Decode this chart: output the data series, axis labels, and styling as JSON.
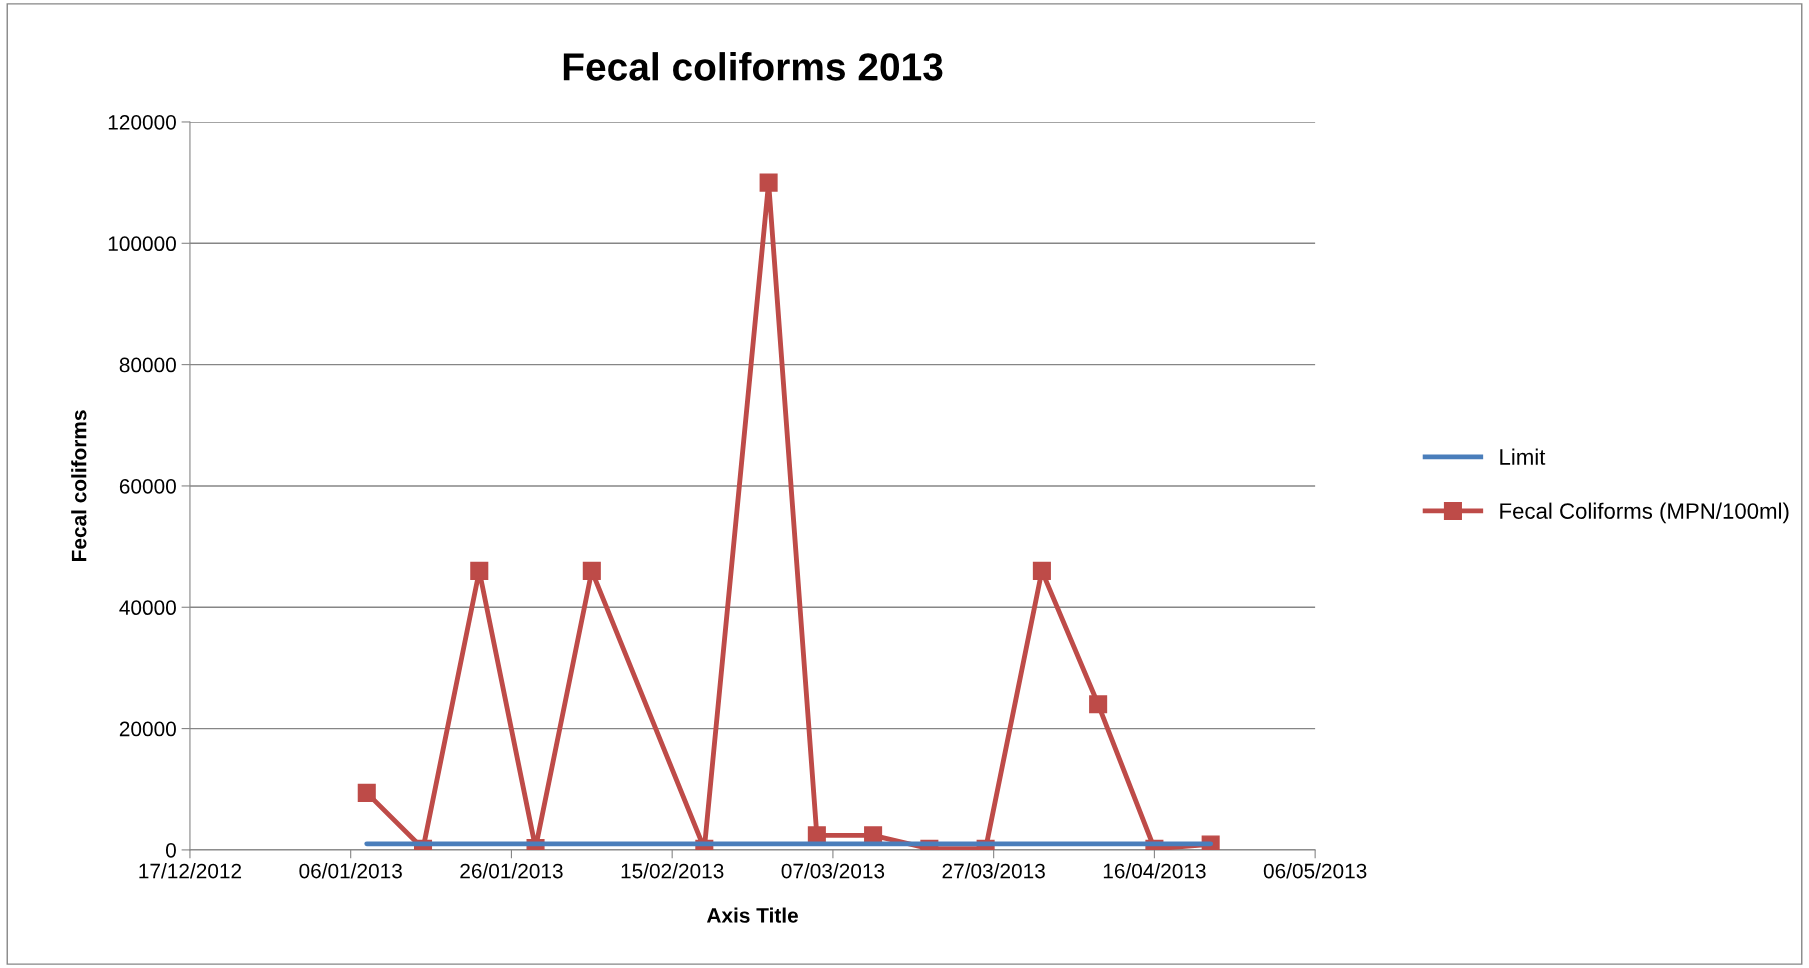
{
  "chart_data": {
    "type": "line",
    "title": "Fecal coliforms 2013",
    "xlabel": "Axis Title",
    "ylabel": "Fecal coliforms",
    "x": [
      "2013-01-08",
      "2013-01-15",
      "2013-01-22",
      "2013-01-29",
      "2013-02-05",
      "2013-02-19",
      "2013-02-27",
      "2013-03-05",
      "2013-03-12",
      "2013-03-19",
      "2013-03-26",
      "2013-04-02",
      "2013-04-09",
      "2013-04-16",
      "2013-04-23"
    ],
    "series": [
      {
        "name": "Limit",
        "color": "#4a7ebb",
        "marker": "none",
        "values": [
          1000,
          1000,
          1000,
          1000,
          1000,
          1000,
          1000,
          1000,
          1000,
          1000,
          1000,
          1000,
          1000,
          1000,
          1000
        ]
      },
      {
        "name": "Fecal Coliforms (MPN/100ml)",
        "color": "#be4b48",
        "marker": "square",
        "values": [
          9400,
          200,
          46000,
          300,
          46000,
          200,
          110000,
          2400,
          2400,
          200,
          200,
          46000,
          24000,
          200,
          900
        ]
      }
    ],
    "xlim": [
      "2012-12-17",
      "2013-05-06"
    ],
    "xticks": [
      {
        "value": "2012-12-17",
        "label": "17/12/2012"
      },
      {
        "value": "2013-01-06",
        "label": "06/01/2013"
      },
      {
        "value": "2013-01-26",
        "label": "26/01/2013"
      },
      {
        "value": "2013-02-15",
        "label": "15/02/2013"
      },
      {
        "value": "2013-03-07",
        "label": "07/03/2013"
      },
      {
        "value": "2013-03-27",
        "label": "27/03/2013"
      },
      {
        "value": "2013-04-16",
        "label": "16/04/2013"
      },
      {
        "value": "2013-05-06",
        "label": "06/05/2013"
      }
    ],
    "ylim": [
      0,
      120000
    ],
    "yticks": [
      0,
      20000,
      40000,
      60000,
      80000,
      100000,
      120000
    ],
    "grid": "y",
    "legend": "right"
  }
}
